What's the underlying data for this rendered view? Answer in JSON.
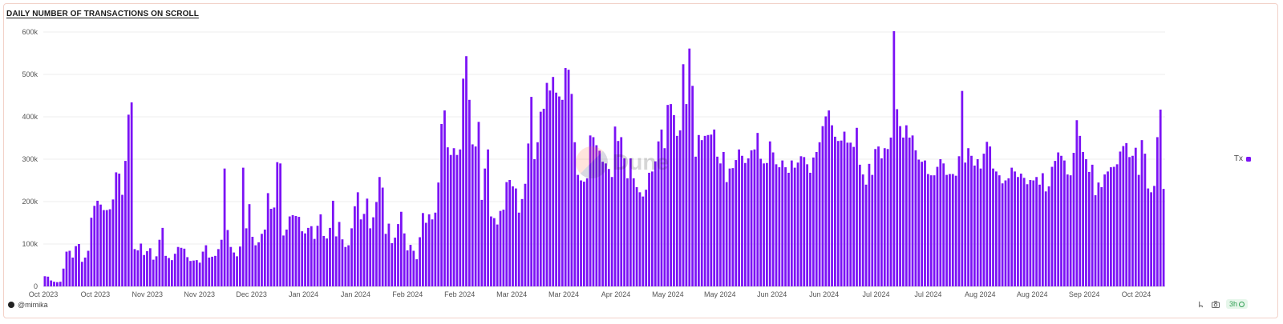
{
  "title": "DAILY NUMBER OF TRANSACTIONS ON SCROLL",
  "footer": {
    "user": "@mimika",
    "refresh_label": "3h"
  },
  "watermark": "Dune",
  "colors": {
    "bar": "#7b12f5",
    "grid": "#ececec",
    "axis_text": "#555555"
  },
  "chart_data": {
    "type": "bar",
    "title": "DAILY NUMBER OF TRANSACTIONS ON SCROLL",
    "xlabel": "",
    "ylabel": "",
    "ylim": [
      0,
      600000
    ],
    "y_ticks": [
      0,
      100000,
      200000,
      300000,
      400000,
      500000,
      600000
    ],
    "y_tick_labels": [
      "0",
      "100k",
      "200k",
      "300k",
      "400k",
      "500k",
      "600k"
    ],
    "x_tick_labels": [
      "Oct 2023",
      "Oct 2023",
      "Nov 2023",
      "Nov 2023",
      "Dec 2023",
      "Jan 2024",
      "Jan 2024",
      "Feb 2024",
      "Feb 2024",
      "Mar 2024",
      "Mar 2024",
      "Apr 2024",
      "May 2024",
      "May 2024",
      "Jun 2024",
      "Jun 2024",
      "Jul 2024",
      "Jul 2024",
      "Aug 2024",
      "Aug 2024",
      "Sep 2024",
      "Oct 2024"
    ],
    "legend": "right",
    "grid": true,
    "series": [
      {
        "name": "Tx",
        "values": [
          24000,
          23000,
          14000,
          11000,
          10000,
          11000,
          42000,
          82000,
          84000,
          68000,
          95000,
          100000,
          58000,
          68000,
          84000,
          162000,
          190000,
          202000,
          193000,
          180000,
          180000,
          182000,
          205000,
          269000,
          266000,
          216000,
          296000,
          405000,
          434000,
          88000,
          85000,
          101000,
          74000,
          83000,
          90000,
          63000,
          71000,
          110000,
          138000,
          72000,
          67000,
          62000,
          77000,
          93000,
          91000,
          89000,
          69000,
          60000,
          61000,
          62000,
          56000,
          82000,
          97000,
          68000,
          70000,
          72000,
          88000,
          110000,
          278000,
          133000,
          93000,
          80000,
          71000,
          94000,
          280000,
          137000,
          194000,
          117000,
          97000,
          104000,
          124000,
          134000,
          220000,
          183000,
          186000,
          293000,
          290000,
          120000,
          134000,
          165000,
          168000,
          166000,
          164000,
          130000,
          125000,
          138000,
          142000,
          112000,
          143000,
          170000,
          119000,
          113000,
          138000,
          202000,
          118000,
          152000,
          111000,
          93000,
          97000,
          137000,
          189000,
          222000,
          158000,
          171000,
          207000,
          137000,
          163000,
          199000,
          258000,
          233000,
          124000,
          148000,
          102000,
          115000,
          147000,
          176000,
          125000,
          85000,
          98000,
          84000,
          64000,
          116000,
          173000,
          150000,
          170000,
          158000,
          174000,
          245000,
          383000,
          415000,
          328000,
          310000,
          326000,
          310000,
          323000,
          490000,
          543000,
          440000,
          335000,
          330000,
          388000,
          204000,
          278000,
          323000,
          165000,
          161000,
          146000,
          178000,
          181000,
          246000,
          251000,
          236000,
          231000,
          174000,
          206000,
          242000,
          337000,
          447000,
          300000,
          340000,
          412000,
          419000,
          480000,
          462000,
          494000,
          457000,
          448000,
          440000,
          515000,
          511000,
          454000,
          340000,
          263000,
          250000,
          247000,
          255000,
          356000,
          352000,
          333000,
          320000,
          294000,
          290000,
          277000,
          258000,
          377000,
          343000,
          352000,
          302000,
          255000,
          302000,
          255000,
          234000,
          222000,
          212000,
          228000,
          268000,
          271000,
          295000,
          342000,
          370000,
          326000,
          428000,
          430000,
          404000,
          355000,
          368000,
          524000,
          430000,
          561000,
          473000,
          306000,
          357000,
          345000,
          355000,
          357000,
          358000,
          370000,
          306000,
          290000,
          317000,
          246000,
          278000,
          279000,
          298000,
          323000,
          308000,
          291000,
          302000,
          321000,
          323000,
          362000,
          301000,
          290000,
          291000,
          342000,
          316000,
          288000,
          281000,
          297000,
          281000,
          268000,
          297000,
          280000,
          292000,
          307000,
          305000,
          288000,
          268000,
          304000,
          317000,
          340000,
          378000,
          401000,
          415000,
          380000,
          353000,
          343000,
          344000,
          365000,
          339000,
          339000,
          329000,
          374000,
          287000,
          264000,
          240000,
          289000,
          263000,
          324000,
          330000,
          302000,
          326000,
          324000,
          351000,
          602000,
          418000,
          378000,
          351000,
          380000,
          351000,
          356000,
          321000,
          299000,
          294000,
          297000,
          265000,
          262000,
          262000,
          282000,
          300000,
          290000,
          263000,
          265000,
          265000,
          261000,
          307000,
          461000,
          292000,
          326000,
          308000,
          285000,
          300000,
          278000,
          313000,
          341000,
          330000,
          278000,
          271000,
          262000,
          243000,
          250000,
          255000,
          280000,
          271000,
          258000,
          266000,
          256000,
          241000,
          251000,
          250000,
          258000,
          240000,
          267000,
          224000,
          236000,
          282000,
          296000,
          316000,
          308000,
          297000,
          264000,
          262000,
          315000,
          392000,
          355000,
          317000,
          300000,
          270000,
          287000,
          215000,
          245000,
          234000,
          264000,
          271000,
          281000,
          282000,
          288000,
          318000,
          331000,
          338000,
          305000,
          308000,
          327000,
          263000,
          345000,
          313000,
          231000,
          222000,
          237000,
          352000,
          417000,
          230000
        ]
      }
    ]
  }
}
